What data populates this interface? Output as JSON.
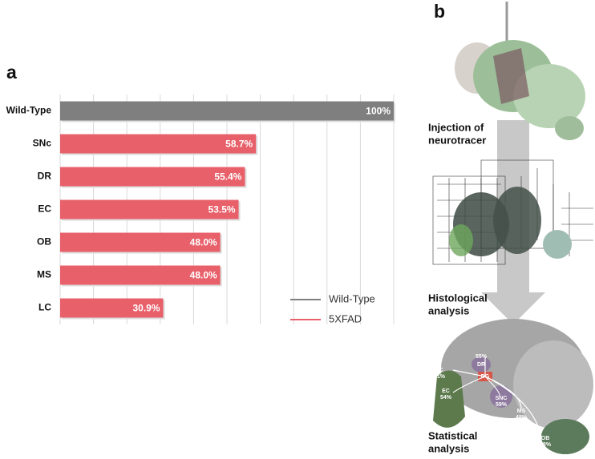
{
  "panels": [
    "a",
    "b"
  ],
  "chart_data": {
    "type": "hbar",
    "categories": [
      "Wild-Type",
      "SNc",
      "DR",
      "EC",
      "OB",
      "MS",
      "LC"
    ],
    "series": [
      {
        "name": "Wild-Type",
        "color": "#7f7f7f",
        "values": [
          100,
          null,
          null,
          null,
          null,
          null,
          null
        ],
        "value_labels": [
          "100%",
          null,
          null,
          null,
          null,
          null,
          null
        ]
      },
      {
        "name": "5XFAD",
        "color": "#e8606a",
        "values": [
          null,
          58.7,
          55.4,
          53.5,
          48.0,
          48.0,
          30.9
        ],
        "value_labels": [
          null,
          "58.7%",
          "55.4%",
          "53.5%",
          "48.0%",
          "48.0%",
          "30.9%"
        ]
      }
    ],
    "xlim": [
      0,
      100
    ],
    "xticks": [
      0,
      10,
      20,
      30,
      40,
      50,
      60,
      70,
      80,
      90,
      100
    ],
    "grid": true,
    "legend": "lower right"
  },
  "diagram": {
    "steps": [
      [
        "Injection of",
        "neurotracer"
      ],
      [
        "Histological",
        "analysis"
      ],
      [
        "Statistical",
        "analysis"
      ]
    ],
    "regions": [
      {
        "name": "DR",
        "value": "55%"
      },
      {
        "name": "LC",
        "value": "31%"
      },
      {
        "name": "DG",
        "value": null
      },
      {
        "name": "EC",
        "value": "54%"
      },
      {
        "name": "SNC",
        "value": "59%"
      },
      {
        "name": "MS",
        "value": "48%"
      },
      {
        "name": "OB",
        "value": "48%"
      }
    ]
  }
}
